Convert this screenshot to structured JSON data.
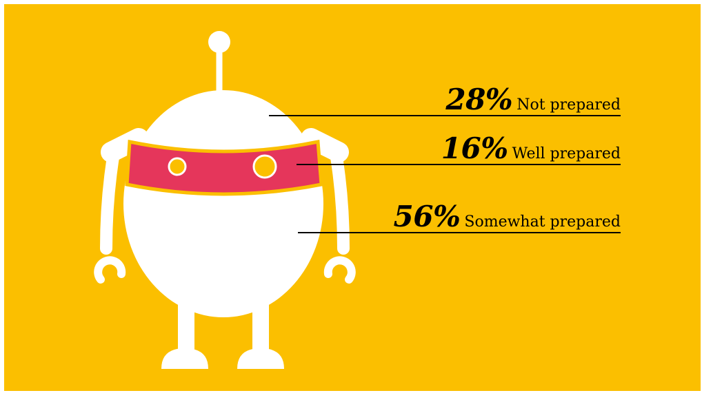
{
  "colors": {
    "background": "#FBBF00",
    "robot_body": "#FFFFFF",
    "visor": "#E5365B",
    "visor_border": "#FBBF00",
    "text": "#000000"
  },
  "chart_data": {
    "type": "pie",
    "title": "",
    "series": [
      {
        "values": [
          28,
          16,
          56
        ],
        "labels": [
          "Not prepared",
          "Well prepared",
          "Somewhat prepared"
        ]
      }
    ],
    "items": [
      {
        "percent": 28,
        "percent_label": "28%",
        "label": "Not prepared"
      },
      {
        "percent": 16,
        "percent_label": "16%",
        "label": "Well prepared"
      },
      {
        "percent": 56,
        "percent_label": "56%",
        "label": "Somewhat prepared"
      }
    ]
  }
}
